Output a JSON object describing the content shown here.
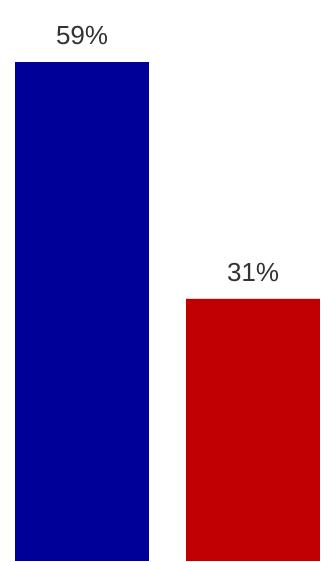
{
  "chart_data": {
    "type": "bar",
    "categories": [
      "",
      ""
    ],
    "values": [
      59,
      31
    ],
    "value_labels": [
      "59%",
      "31%"
    ],
    "bar_colors": [
      "#000099",
      "#c00000"
    ],
    "label_color": "#333333",
    "ylim": [
      0,
      59
    ],
    "grid": false,
    "legend": "none",
    "title": "",
    "xlabel": "",
    "ylabel": ""
  }
}
